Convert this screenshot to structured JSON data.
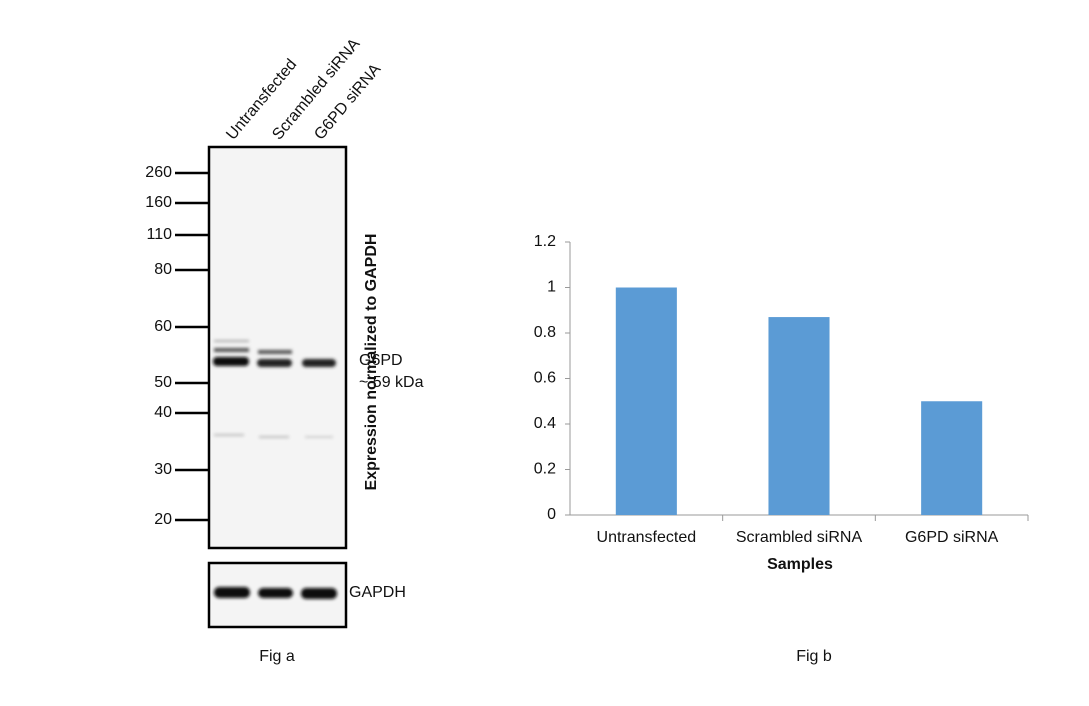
{
  "blot": {
    "lanes": [
      "Untransfected",
      "Scrambled siRNA",
      "G6PD siRNA"
    ],
    "markers": [
      260,
      160,
      110,
      80,
      60,
      50,
      40,
      30,
      20
    ],
    "band_label": "G6PD",
    "band_size": "~ 59 kDa",
    "loading_control": "GAPDH",
    "caption": "Fig a"
  },
  "chart_data": {
    "type": "bar",
    "caption": "Fig b",
    "x_label": "Samples",
    "y_label": "Expression  normalized to GAPDH",
    "categories": [
      "Untransfected",
      "Scrambled siRNA",
      "G6PD siRNA"
    ],
    "values": [
      1,
      0.87,
      0.5
    ],
    "color": "#5b9bd5",
    "ylim": [
      0,
      1.2
    ],
    "yticks": [
      0,
      0.2,
      0.4,
      0.6,
      0.8,
      1,
      1.2
    ],
    "grid": false
  }
}
